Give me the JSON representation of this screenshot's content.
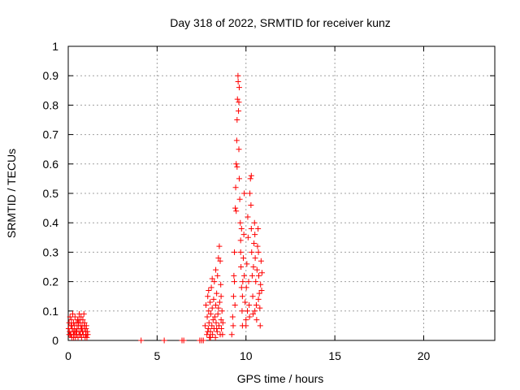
{
  "chart_data": {
    "type": "scatter",
    "title": "Day 318 of 2022, SRMTID for receiver kunz",
    "xlabel": "GPS time / hours",
    "ylabel": "SRMTID / TECUs",
    "xlim": [
      0,
      24
    ],
    "ylim": [
      0,
      1
    ],
    "xticks": [
      "0",
      "5",
      "10",
      "15",
      "20"
    ],
    "yticks": [
      "0",
      "0.1",
      "0.2",
      "0.3",
      "0.4",
      "0.5",
      "0.6",
      "0.7",
      "0.8",
      "0.9",
      "1"
    ],
    "grid": true,
    "marker": "+",
    "color": "#ff0000",
    "series": [
      {
        "points": [
          [
            0.02,
            0.04
          ],
          [
            0.05,
            0.06
          ],
          [
            0.08,
            0.03
          ],
          [
            0.1,
            0.08
          ],
          [
            0.12,
            0.02
          ],
          [
            0.15,
            0.05
          ],
          [
            0.18,
            0.07
          ],
          [
            0.2,
            0.01
          ],
          [
            0.22,
            0.04
          ],
          [
            0.25,
            0.09
          ],
          [
            0.28,
            0.03
          ],
          [
            0.3,
            0.06
          ],
          [
            0.32,
            0.02
          ],
          [
            0.35,
            0.05
          ],
          [
            0.38,
            0.08
          ],
          [
            0.4,
            0.01
          ],
          [
            0.42,
            0.03
          ],
          [
            0.45,
            0.06
          ],
          [
            0.48,
            0.02
          ],
          [
            0.5,
            0.04
          ],
          [
            0.52,
            0.07
          ],
          [
            0.55,
            0.01
          ],
          [
            0.58,
            0.05
          ],
          [
            0.6,
            0.03
          ],
          [
            0.62,
            0.09
          ],
          [
            0.65,
            0.02
          ],
          [
            0.68,
            0.06
          ],
          [
            0.7,
            0.04
          ],
          [
            0.72,
            0.08
          ],
          [
            0.75,
            0.01
          ],
          [
            0.78,
            0.05
          ],
          [
            0.8,
            0.03
          ],
          [
            0.82,
            0.07
          ],
          [
            0.85,
            0.02
          ],
          [
            0.88,
            0.09
          ],
          [
            0.9,
            0.04
          ],
          [
            0.92,
            0.06
          ],
          [
            0.95,
            0.01
          ],
          [
            0.98,
            0.03
          ],
          [
            1.0,
            0.02
          ],
          [
            1.02,
            0.05
          ],
          [
            1.05,
            0.01
          ],
          [
            1.08,
            0.03
          ],
          [
            1.1,
            0.02
          ],
          [
            0.15,
            0.02
          ],
          [
            0.3,
            0.01
          ],
          [
            0.55,
            0.06
          ],
          [
            0.75,
            0.04
          ],
          [
            0.9,
            0.05
          ],
          [
            0.05,
            0.02
          ],
          [
            0.45,
            0.03
          ],
          [
            0.68,
            0.02
          ],
          [
            1.0,
            0.04
          ],
          [
            0.2,
            0.05
          ],
          [
            0.35,
            0.03
          ],
          [
            0.6,
            0.07
          ],
          [
            4.1,
            0.0
          ],
          [
            5.4,
            0.0
          ],
          [
            6.4,
            0.0
          ],
          [
            6.5,
            0.0
          ],
          [
            7.4,
            0.0
          ],
          [
            7.5,
            0.0
          ],
          [
            7.6,
            0.0
          ],
          [
            7.7,
            0.05
          ],
          [
            7.75,
            0.12
          ],
          [
            7.8,
            0.02
          ],
          [
            7.82,
            0.08
          ],
          [
            7.85,
            0.15
          ],
          [
            7.88,
            0.04
          ],
          [
            7.9,
            0.1
          ],
          [
            7.92,
            0.06
          ],
          [
            7.95,
            0.01
          ],
          [
            7.98,
            0.13
          ],
          [
            8.0,
            0.03
          ],
          [
            8.02,
            0.09
          ],
          [
            8.05,
            0.18
          ],
          [
            8.08,
            0.05
          ],
          [
            8.1,
            0.11
          ],
          [
            8.12,
            0.02
          ],
          [
            8.15,
            0.07
          ],
          [
            8.18,
            0.14
          ],
          [
            8.2,
            0.04
          ],
          [
            8.22,
            0.2
          ],
          [
            8.25,
            0.08
          ],
          [
            8.28,
            0.01
          ],
          [
            8.3,
            0.12
          ],
          [
            8.32,
            0.06
          ],
          [
            8.35,
            0.16
          ],
          [
            8.38,
            0.03
          ],
          [
            8.4,
            0.22
          ],
          [
            8.42,
            0.09
          ],
          [
            8.45,
            0.28
          ],
          [
            8.48,
            0.05
          ],
          [
            8.5,
            0.32
          ],
          [
            8.52,
            0.13
          ],
          [
            8.55,
            0.02
          ],
          [
            8.58,
            0.19
          ],
          [
            8.6,
            0.07
          ],
          [
            8.62,
            0.04
          ],
          [
            8.65,
            0.1
          ],
          [
            8.68,
            0.02
          ],
          [
            8.7,
            0.06
          ],
          [
            7.9,
            0.17
          ],
          [
            8.1,
            0.21
          ],
          [
            8.3,
            0.24
          ],
          [
            8.55,
            0.27
          ],
          [
            8.6,
            0.15
          ],
          [
            8.0,
            0.01
          ],
          [
            8.45,
            0.11
          ],
          [
            8.35,
            0.04
          ],
          [
            7.85,
            0.03
          ],
          [
            9.2,
            0.02
          ],
          [
            9.25,
            0.08
          ],
          [
            9.3,
            0.15
          ],
          [
            9.32,
            0.22
          ],
          [
            9.35,
            0.3
          ],
          [
            9.38,
            0.12
          ],
          [
            9.4,
            0.45
          ],
          [
            9.42,
            0.52
          ],
          [
            9.45,
            0.6
          ],
          [
            9.48,
            0.68
          ],
          [
            9.5,
            0.75
          ],
          [
            9.52,
            0.82
          ],
          [
            9.55,
            0.9
          ],
          [
            9.56,
            0.88
          ],
          [
            9.58,
            0.78
          ],
          [
            9.6,
            0.65
          ],
          [
            9.62,
            0.55
          ],
          [
            9.65,
            0.48
          ],
          [
            9.68,
            0.4
          ],
          [
            9.7,
            0.34
          ],
          [
            9.72,
            0.25
          ],
          [
            9.75,
            0.18
          ],
          [
            9.78,
            0.1
          ],
          [
            9.8,
            0.05
          ],
          [
            9.82,
            0.2
          ],
          [
            9.85,
            0.28
          ],
          [
            9.88,
            0.36
          ],
          [
            9.9,
            0.5
          ],
          [
            9.6,
            0.81
          ],
          [
            9.62,
            0.86
          ],
          [
            9.5,
            0.59
          ],
          [
            9.45,
            0.44
          ],
          [
            9.35,
            0.2
          ],
          [
            9.28,
            0.05
          ],
          [
            9.7,
            0.3
          ],
          [
            9.75,
            0.38
          ],
          [
            9.8,
            0.15
          ],
          [
            9.9,
            0.22
          ],
          [
            9.95,
            0.13
          ],
          [
            10.0,
            0.07
          ],
          [
            10.02,
            0.18
          ],
          [
            10.05,
            0.26
          ],
          [
            10.08,
            0.1
          ],
          [
            10.1,
            0.42
          ],
          [
            10.12,
            0.35
          ],
          [
            10.15,
            0.2
          ],
          [
            10.18,
            0.12
          ],
          [
            10.2,
            0.08
          ],
          [
            10.22,
            0.5
          ],
          [
            10.25,
            0.55
          ],
          [
            10.28,
            0.46
          ],
          [
            10.3,
            0.38
          ],
          [
            10.32,
            0.3
          ],
          [
            10.35,
            0.22
          ],
          [
            10.38,
            0.15
          ],
          [
            10.4,
            0.09
          ],
          [
            10.42,
            0.25
          ],
          [
            10.45,
            0.33
          ],
          [
            10.48,
            0.4
          ],
          [
            10.5,
            0.36
          ],
          [
            10.52,
            0.28
          ],
          [
            10.55,
            0.2
          ],
          [
            10.58,
            0.12
          ],
          [
            10.6,
            0.07
          ],
          [
            10.62,
            0.24
          ],
          [
            10.65,
            0.32
          ],
          [
            10.68,
            0.38
          ],
          [
            10.7,
            0.3
          ],
          [
            10.72,
            0.22
          ],
          [
            10.75,
            0.16
          ],
          [
            10.78,
            0.11
          ],
          [
            10.8,
            0.05
          ],
          [
            10.82,
            0.19
          ],
          [
            10.85,
            0.27
          ],
          [
            10.88,
            0.17
          ],
          [
            10.9,
            0.23
          ],
          [
            10.3,
            0.56
          ],
          [
            10.0,
            0.05
          ],
          [
            10.5,
            0.1
          ],
          [
            10.7,
            0.14
          ]
        ]
      }
    ]
  }
}
